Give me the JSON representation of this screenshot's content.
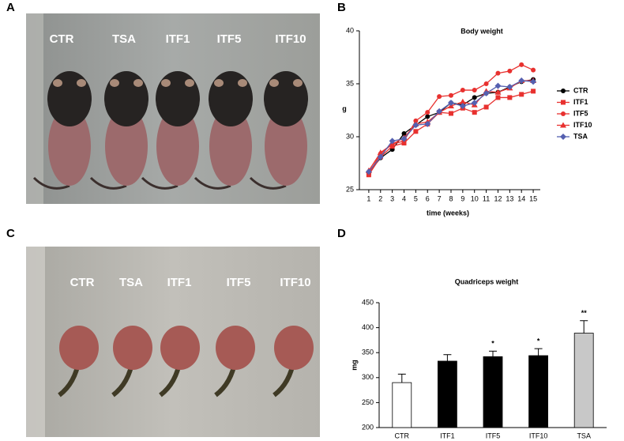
{
  "panel_labels": [
    "A",
    "B",
    "C",
    "D"
  ],
  "photo_a": {
    "labels": [
      "CTR",
      "TSA",
      "ITF1",
      "ITF5",
      "ITF10"
    ]
  },
  "photo_c": {
    "labels": [
      "CTR",
      "TSA",
      "ITF1",
      "ITF5",
      "ITF10"
    ]
  },
  "chart_data": [
    {
      "type": "line",
      "title": "Body weight",
      "x_label": "time (weeks)",
      "y_label": "g",
      "x": [
        1,
        2,
        3,
        4,
        5,
        6,
        7,
        8,
        9,
        10,
        11,
        12,
        13,
        14,
        15
      ],
      "xlim": [
        0.2,
        15.6
      ],
      "xticks": [
        1,
        2,
        3,
        4,
        5,
        6,
        7,
        8,
        9,
        10,
        11,
        12,
        13,
        14,
        15
      ],
      "ylim": [
        25,
        40
      ],
      "yticks": [
        25,
        30,
        35,
        40
      ],
      "legend": "right",
      "series": [
        {
          "name": "CTR",
          "color": "#000000",
          "marker": "circle",
          "values": [
            26.6,
            28.0,
            28.8,
            30.3,
            31.1,
            31.9,
            32.3,
            33.2,
            33.0,
            33.7,
            34.1,
            34.2,
            34.7,
            35.2,
            35.4
          ]
        },
        {
          "name": "ITF1",
          "color": "#e8312f",
          "marker": "square",
          "values": [
            26.4,
            28.1,
            29.1,
            29.4,
            30.5,
            31.2,
            32.3,
            32.2,
            32.7,
            32.3,
            32.8,
            33.7,
            33.7,
            34.0,
            34.3
          ]
        },
        {
          "name": "ITF5",
          "color": "#e8312f",
          "marker": "circle",
          "values": [
            26.5,
            28.4,
            29.3,
            29.6,
            31.5,
            32.3,
            33.8,
            33.9,
            34.4,
            34.4,
            35.0,
            36.0,
            36.2,
            36.8,
            36.3
          ]
        },
        {
          "name": "ITF10",
          "color": "#e8312f",
          "marker": "triangle",
          "values": [
            26.8,
            28.5,
            29.3,
            29.9,
            31.2,
            31.4,
            32.3,
            32.9,
            33.3,
            33.0,
            34.3,
            34.2,
            34.6,
            35.3,
            35.3
          ]
        },
        {
          "name": "TSA",
          "color": "#5560b0",
          "marker": "diamond",
          "values": [
            26.7,
            28.1,
            29.6,
            29.8,
            31.1,
            31.2,
            32.4,
            33.2,
            32.9,
            33.2,
            34.1,
            34.8,
            34.7,
            35.3,
            35.2
          ]
        }
      ]
    },
    {
      "type": "bar",
      "title": "Quadriceps weight",
      "y_label": "mg",
      "categories": [
        "CTR",
        "ITF1",
        "ITF5",
        "ITF10",
        "TSA"
      ],
      "values": [
        290,
        333,
        342,
        344,
        389
      ],
      "errors": [
        17,
        13,
        11,
        14,
        25
      ],
      "colors": [
        "#ffffff",
        "#000000",
        "#000000",
        "#000000",
        "#c8c8c8"
      ],
      "significance": [
        null,
        null,
        "*",
        "*",
        "**"
      ],
      "ylim": [
        200,
        450
      ],
      "yticks": [
        200,
        250,
        300,
        350,
        400,
        450
      ]
    }
  ]
}
